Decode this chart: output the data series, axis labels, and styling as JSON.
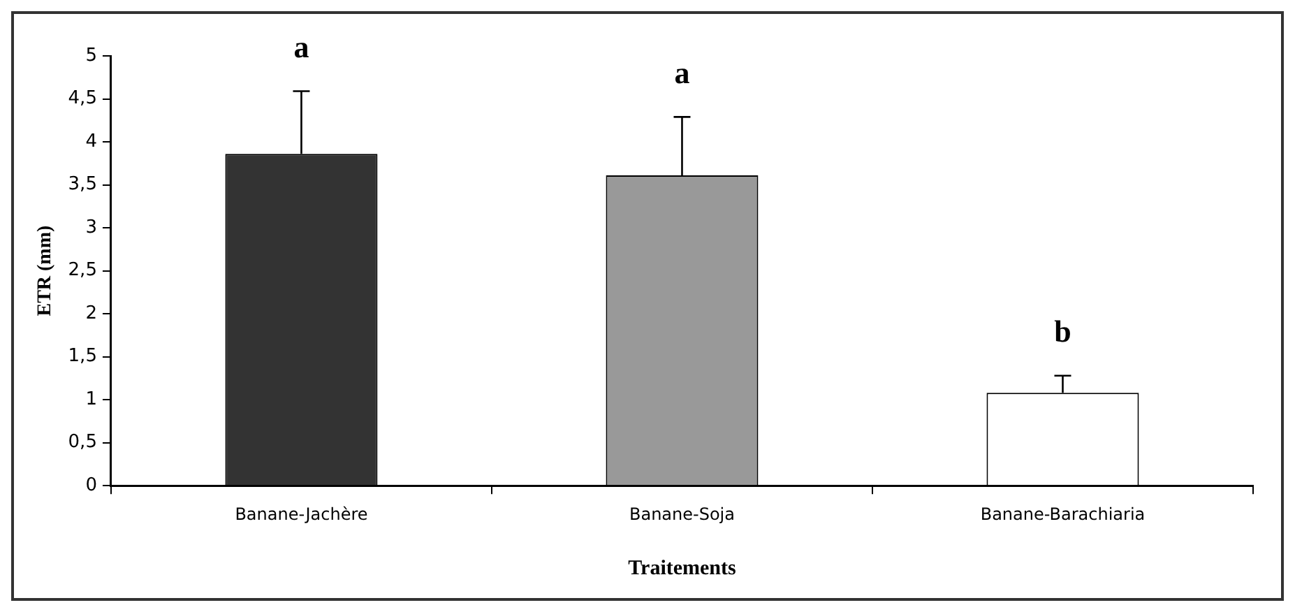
{
  "chart_data": {
    "type": "bar",
    "xlabel": "Traitements",
    "ylabel": "ETR (mm)",
    "categories": [
      "Banane-Jachère",
      "Banane-Soja",
      "Banane-Barachiaria"
    ],
    "values": [
      3.86,
      3.61,
      1.08
    ],
    "colors": [
      "#333333",
      "#999999",
      "#ffffff"
    ],
    "errors": [
      [
        3.86,
        4.59
      ],
      [
        3.61,
        4.29
      ],
      [
        1.08,
        1.28
      ]
    ],
    "ylim": [
      0,
      5
    ],
    "yticks": [
      0,
      {
        "value": 0.5,
        "label": "0,5"
      },
      1,
      {
        "value": 1.5,
        "label": "1,5"
      },
      2,
      {
        "value": 2.5,
        "label": "2,5"
      },
      3,
      {
        "value": 3.5,
        "label": "3,5"
      },
      4,
      {
        "value": 4.5,
        "label": "4,5"
      },
      5
    ],
    "annotations": [
      "a",
      "a",
      "b"
    ],
    "grid": false,
    "legend": false
  }
}
